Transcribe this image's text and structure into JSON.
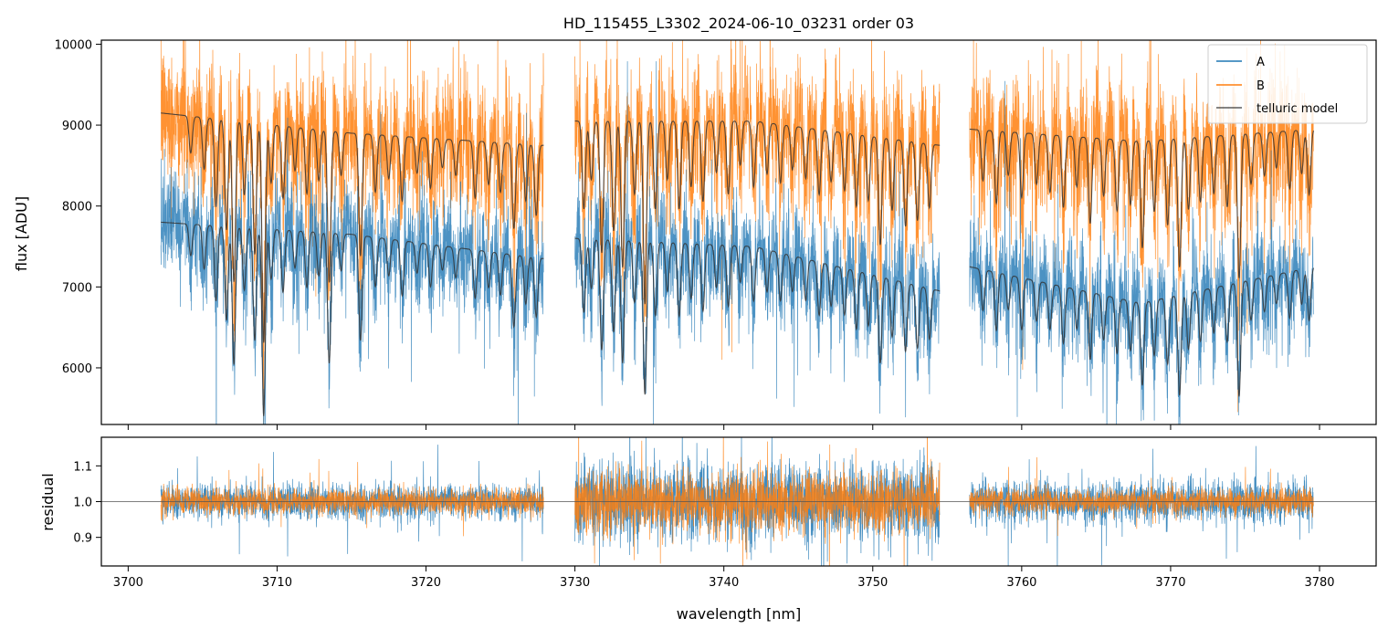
{
  "chart_data": {
    "type": "line",
    "title": "HD_115455_L3302_2024-06-10_03231  order 03",
    "xlabel": "wavelength [nm]",
    "xlim": [
      3698.2,
      3783.8
    ],
    "x_ticks": [
      3700,
      3710,
      3720,
      3730,
      3740,
      3750,
      3760,
      3770,
      3780
    ],
    "segments": [
      [
        3702.2,
        3727.9
      ],
      [
        3730.0,
        3754.5
      ],
      [
        3756.5,
        3779.6
      ]
    ],
    "colors": {
      "A": "#1f77b4",
      "B": "#ff7f0e",
      "telluric": "#333333"
    },
    "legend_position": "top-right",
    "panels": [
      {
        "name": "flux",
        "ylabel": "flux [ADU]",
        "ylim": [
          5300,
          10050
        ],
        "y_ticks": [
          6000,
          7000,
          8000,
          9000,
          10000
        ],
        "series": [
          {
            "name": "A",
            "continuum": [
              [
                3702.2,
                7800
              ],
              [
                3715,
                7650
              ],
              [
                3727.9,
                7350
              ],
              [
                3730.0,
                7600
              ],
              [
                3742,
                7500
              ],
              [
                3754.5,
                6950
              ],
              [
                3756.5,
                7250
              ],
              [
                3768,
                6800
              ],
              [
                3779.6,
                7250
              ]
            ],
            "noise": 600
          },
          {
            "name": "B",
            "continuum": [
              [
                3702.2,
                9150
              ],
              [
                3715,
                8900
              ],
              [
                3727.9,
                8750
              ],
              [
                3730.0,
                9050
              ],
              [
                3742,
                9050
              ],
              [
                3754.5,
                8750
              ],
              [
                3756.5,
                8950
              ],
              [
                3768,
                8800
              ],
              [
                3779.6,
                8950
              ]
            ],
            "noise": 750
          },
          {
            "name": "telluric model",
            "continuum_A": [
              [
                3702.2,
                7800
              ],
              [
                3715,
                7650
              ],
              [
                3727.9,
                7350
              ],
              [
                3730.0,
                7600
              ],
              [
                3742,
                7500
              ],
              [
                3754.5,
                6950
              ],
              [
                3756.5,
                7250
              ],
              [
                3768,
                6800
              ],
              [
                3779.6,
                7250
              ]
            ],
            "continuum_B": [
              [
                3702.2,
                9150
              ],
              [
                3715,
                8900
              ],
              [
                3727.9,
                8750
              ],
              [
                3730.0,
                9050
              ],
              [
                3742,
                9050
              ],
              [
                3754.5,
                8750
              ],
              [
                3756.5,
                8950
              ],
              [
                3768,
                8800
              ],
              [
                3779.6,
                8950
              ]
            ]
          }
        ]
      },
      {
        "name": "residual",
        "ylabel": "residual",
        "ylim": [
          0.82,
          1.18
        ],
        "y_ticks": [
          0.9,
          1.0,
          1.1
        ],
        "reference_line": 1.0,
        "series": [
          {
            "name": "A",
            "noise_by_segment": [
              0.04,
              0.09,
              0.05
            ]
          },
          {
            "name": "B",
            "noise_by_segment": [
              0.03,
              0.07,
              0.03
            ]
          }
        ]
      }
    ],
    "telluric_lines": [
      [
        3704.2,
        0.05
      ],
      [
        3705.1,
        0.07
      ],
      [
        3705.9,
        0.12
      ],
      [
        3706.6,
        0.15
      ],
      [
        3707.1,
        0.22
      ],
      [
        3707.8,
        0.1
      ],
      [
        3708.5,
        0.18
      ],
      [
        3709.1,
        0.3
      ],
      [
        3709.6,
        0.08
      ],
      [
        3710.4,
        0.1
      ],
      [
        3711.2,
        0.06
      ],
      [
        3712.0,
        0.09
      ],
      [
        3712.8,
        0.07
      ],
      [
        3713.5,
        0.21
      ],
      [
        3714.3,
        0.06
      ],
      [
        3715.6,
        0.17
      ],
      [
        3716.6,
        0.08
      ],
      [
        3717.5,
        0.06
      ],
      [
        3718.4,
        0.09
      ],
      [
        3719.4,
        0.05
      ],
      [
        3720.3,
        0.07
      ],
      [
        3721.1,
        0.04
      ],
      [
        3722.0,
        0.05
      ],
      [
        3723.3,
        0.08
      ],
      [
        3724.2,
        0.06
      ],
      [
        3725.0,
        0.07
      ],
      [
        3725.9,
        0.12
      ],
      [
        3726.7,
        0.08
      ],
      [
        3727.4,
        0.1
      ],
      [
        3730.6,
        0.12
      ],
      [
        3731.1,
        0.08
      ],
      [
        3731.8,
        0.18
      ],
      [
        3732.6,
        0.15
      ],
      [
        3733.2,
        0.2
      ],
      [
        3734.0,
        0.1
      ],
      [
        3734.7,
        0.25
      ],
      [
        3735.4,
        0.12
      ],
      [
        3736.2,
        0.08
      ],
      [
        3737.0,
        0.12
      ],
      [
        3737.8,
        0.09
      ],
      [
        3738.6,
        0.11
      ],
      [
        3739.5,
        0.07
      ],
      [
        3740.3,
        0.1
      ],
      [
        3741.1,
        0.06
      ],
      [
        3742.0,
        0.09
      ],
      [
        3742.9,
        0.07
      ],
      [
        3743.8,
        0.08
      ],
      [
        3744.6,
        0.06
      ],
      [
        3745.5,
        0.07
      ],
      [
        3746.4,
        0.09
      ],
      [
        3747.2,
        0.07
      ],
      [
        3748.1,
        0.08
      ],
      [
        3748.9,
        0.1
      ],
      [
        3749.7,
        0.09
      ],
      [
        3750.5,
        0.15
      ],
      [
        3751.3,
        0.1
      ],
      [
        3752.2,
        0.12
      ],
      [
        3753.0,
        0.11
      ],
      [
        3753.8,
        0.09
      ],
      [
        3757.4,
        0.07
      ],
      [
        3758.3,
        0.1
      ],
      [
        3759.1,
        0.06
      ],
      [
        3760.0,
        0.09
      ],
      [
        3761.0,
        0.07
      ],
      [
        3761.9,
        0.08
      ],
      [
        3762.8,
        0.1
      ],
      [
        3763.7,
        0.07
      ],
      [
        3764.6,
        0.12
      ],
      [
        3765.5,
        0.08
      ],
      [
        3766.4,
        0.1
      ],
      [
        3767.3,
        0.09
      ],
      [
        3768.1,
        0.15
      ],
      [
        3768.9,
        0.1
      ],
      [
        3769.8,
        0.12
      ],
      [
        3770.6,
        0.18
      ],
      [
        3771.2,
        0.1
      ],
      [
        3772.0,
        0.09
      ],
      [
        3772.9,
        0.08
      ],
      [
        3773.8,
        0.1
      ],
      [
        3774.6,
        0.2
      ],
      [
        3775.4,
        0.07
      ],
      [
        3776.3,
        0.06
      ],
      [
        3777.1,
        0.05
      ],
      [
        3778.0,
        0.08
      ],
      [
        3778.8,
        0.06
      ],
      [
        3779.3,
        0.09
      ]
    ]
  }
}
